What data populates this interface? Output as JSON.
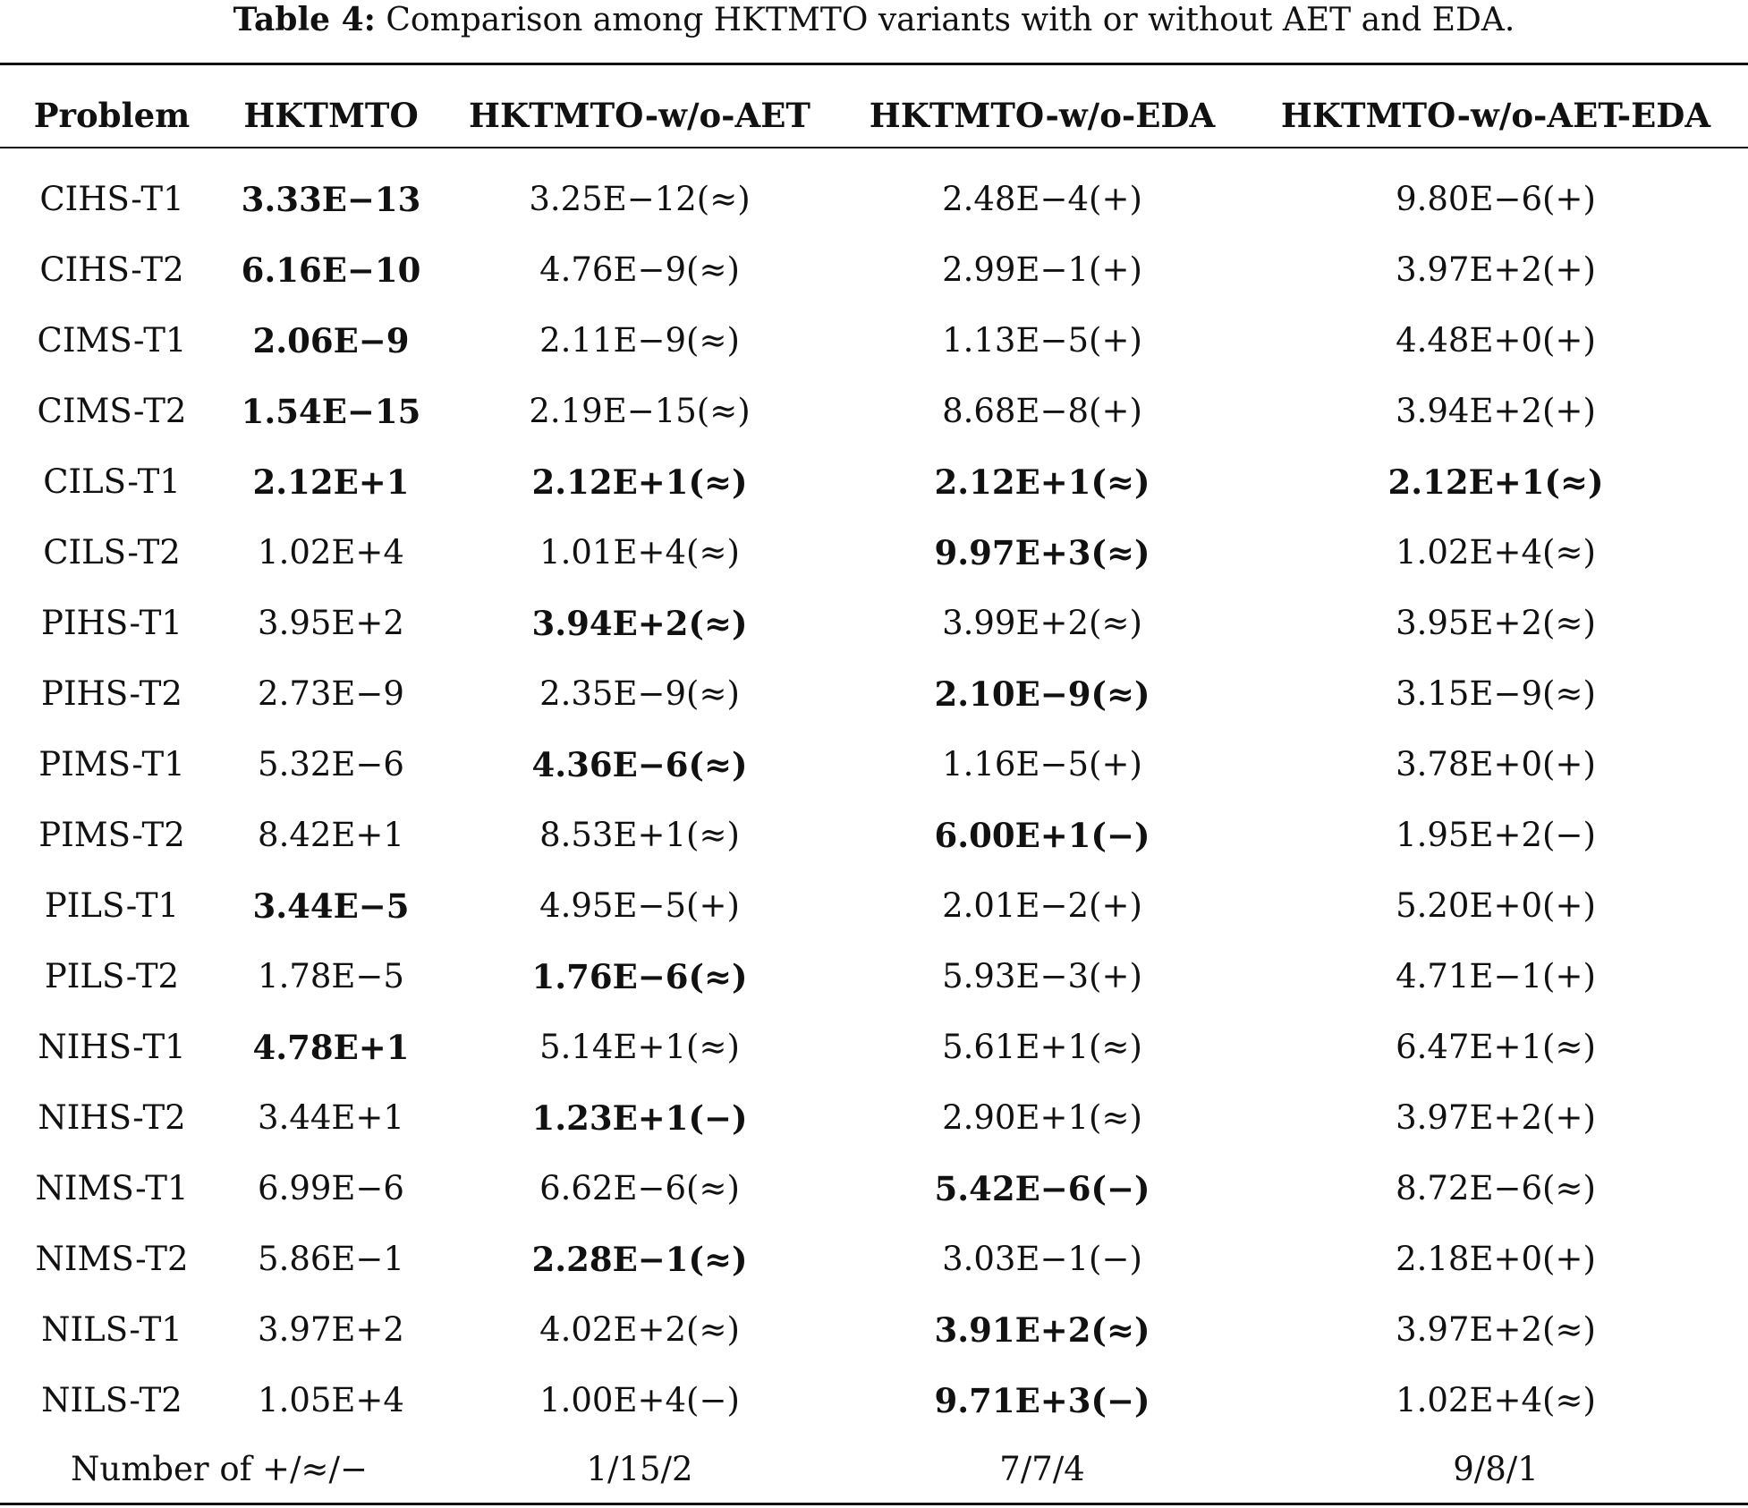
{
  "caption": {
    "label": "Table 4:",
    "text": " Comparison among HKTMTO variants with or without AET and EDA."
  },
  "table": {
    "headers": [
      "Problem",
      "HKTMTO",
      "HKTMTO-w/o-AET",
      "HKTMTO-w/o-EDA",
      "HKTMTO-w/o-AET-EDA"
    ],
    "rows": [
      {
        "problem": "CIHS-T1",
        "values": [
          "3.33E−13",
          "3.25E−12(≈)",
          "2.48E−4(+)",
          "9.80E−6(+)"
        ],
        "bold": [
          true,
          false,
          false,
          false
        ]
      },
      {
        "problem": "CIHS-T2",
        "values": [
          "6.16E−10",
          "4.76E−9(≈)",
          "2.99E−1(+)",
          "3.97E+2(+)"
        ],
        "bold": [
          true,
          false,
          false,
          false
        ]
      },
      {
        "problem": "CIMS-T1",
        "values": [
          "2.06E−9",
          "2.11E−9(≈)",
          "1.13E−5(+)",
          "4.48E+0(+)"
        ],
        "bold": [
          true,
          false,
          false,
          false
        ]
      },
      {
        "problem": "CIMS-T2",
        "values": [
          "1.54E−15",
          "2.19E−15(≈)",
          "8.68E−8(+)",
          "3.94E+2(+)"
        ],
        "bold": [
          true,
          false,
          false,
          false
        ]
      },
      {
        "problem": "CILS-T1",
        "values": [
          "2.12E+1",
          "2.12E+1(≈)",
          "2.12E+1(≈)",
          "2.12E+1(≈)"
        ],
        "bold": [
          true,
          true,
          true,
          true
        ]
      },
      {
        "problem": "CILS-T2",
        "values": [
          "1.02E+4",
          "1.01E+4(≈)",
          "9.97E+3(≈)",
          "1.02E+4(≈)"
        ],
        "bold": [
          false,
          false,
          true,
          false
        ]
      },
      {
        "problem": "PIHS-T1",
        "values": [
          "3.95E+2",
          "3.94E+2(≈)",
          "3.99E+2(≈)",
          "3.95E+2(≈)"
        ],
        "bold": [
          false,
          true,
          false,
          false
        ]
      },
      {
        "problem": "PIHS-T2",
        "values": [
          "2.73E−9",
          "2.35E−9(≈)",
          "2.10E−9(≈)",
          "3.15E−9(≈)"
        ],
        "bold": [
          false,
          false,
          true,
          false
        ]
      },
      {
        "problem": "PIMS-T1",
        "values": [
          "5.32E−6",
          "4.36E−6(≈)",
          "1.16E−5(+)",
          "3.78E+0(+)"
        ],
        "bold": [
          false,
          true,
          false,
          false
        ]
      },
      {
        "problem": "PIMS-T2",
        "values": [
          "8.42E+1",
          "8.53E+1(≈)",
          "6.00E+1(−)",
          "1.95E+2(−)"
        ],
        "bold": [
          false,
          false,
          true,
          false
        ]
      },
      {
        "problem": "PILS-T1",
        "values": [
          "3.44E−5",
          "4.95E−5(+)",
          "2.01E−2(+)",
          "5.20E+0(+)"
        ],
        "bold": [
          true,
          false,
          false,
          false
        ]
      },
      {
        "problem": "PILS-T2",
        "values": [
          "1.78E−5",
          "1.76E−6(≈)",
          "5.93E−3(+)",
          "4.71E−1(+)"
        ],
        "bold": [
          false,
          true,
          false,
          false
        ]
      },
      {
        "problem": "NIHS-T1",
        "values": [
          "4.78E+1",
          "5.14E+1(≈)",
          "5.61E+1(≈)",
          "6.47E+1(≈)"
        ],
        "bold": [
          true,
          false,
          false,
          false
        ]
      },
      {
        "problem": "NIHS-T2",
        "values": [
          "3.44E+1",
          "1.23E+1(−)",
          "2.90E+1(≈)",
          "3.97E+2(+)"
        ],
        "bold": [
          false,
          true,
          false,
          false
        ]
      },
      {
        "problem": "NIMS-T1",
        "values": [
          "6.99E−6",
          "6.62E−6(≈)",
          "5.42E−6(−)",
          "8.72E−6(≈)"
        ],
        "bold": [
          false,
          false,
          true,
          false
        ]
      },
      {
        "problem": "NIMS-T2",
        "values": [
          "5.86E−1",
          "2.28E−1(≈)",
          "3.03E−1(−)",
          "2.18E+0(+)"
        ],
        "bold": [
          false,
          true,
          false,
          false
        ]
      },
      {
        "problem": "NILS-T1",
        "values": [
          "3.97E+2",
          "4.02E+2(≈)",
          "3.91E+2(≈)",
          "3.97E+2(≈)"
        ],
        "bold": [
          false,
          false,
          true,
          false
        ]
      },
      {
        "problem": "NILS-T2",
        "values": [
          "1.05E+4",
          "1.00E+4(−)",
          "9.71E+3(−)",
          "1.02E+4(≈)"
        ],
        "bold": [
          false,
          false,
          true,
          false
        ]
      }
    ],
    "summary": {
      "label": "Number of +/≈/−",
      "values": [
        "1/15/2",
        "7/7/4",
        "9/8/1"
      ]
    }
  }
}
